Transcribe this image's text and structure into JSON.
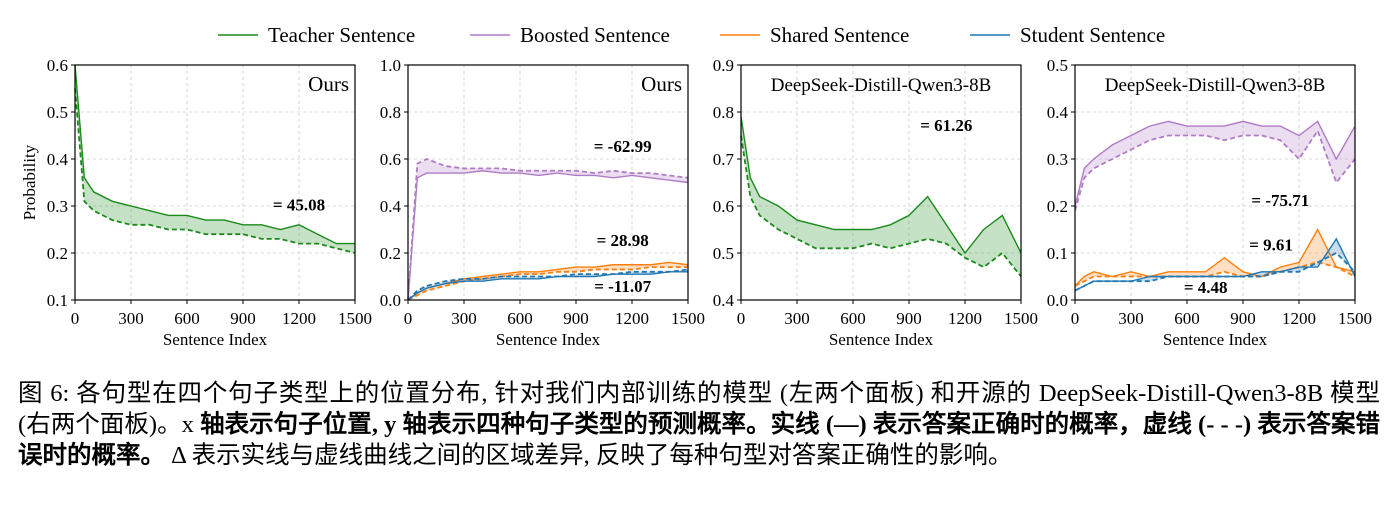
{
  "chart_data": {
    "type": "line",
    "legend_placement": "top-center",
    "legend": [
      {
        "name": "Teacher Sentence",
        "color": "#1a8a1a"
      },
      {
        "name": "Boosted Sentence",
        "color": "#b07cc6"
      },
      {
        "name": "Shared Sentence",
        "color": "#ff7f0e"
      },
      {
        "name": "Student Sentence",
        "color": "#1f77b4"
      }
    ],
    "x_samples": [
      0,
      50,
      100,
      200,
      300,
      400,
      500,
      600,
      700,
      800,
      900,
      1000,
      1100,
      1200,
      1300,
      1400,
      1500
    ],
    "panels": [
      {
        "title": "Ours",
        "xlabel": "Sentence Index",
        "ylabel": "Probability",
        "xlim": [
          0,
          1500
        ],
        "xticks": [
          0,
          300,
          600,
          900,
          1200,
          1500
        ],
        "ylim": [
          0.1,
          0.6
        ],
        "yticks": [
          "0.1",
          "0.2",
          "0.3",
          "0.4",
          "0.5",
          "0.6"
        ],
        "series": [
          {
            "name": "Teacher Sentence",
            "color": "#1a8a1a",
            "correct": [
              0.6,
              0.36,
              0.33,
              0.31,
              0.3,
              0.29,
              0.28,
              0.28,
              0.27,
              0.27,
              0.26,
              0.26,
              0.25,
              0.26,
              0.24,
              0.22,
              0.22
            ],
            "incorrect": [
              0.55,
              0.31,
              0.29,
              0.27,
              0.26,
              0.26,
              0.25,
              0.25,
              0.24,
              0.24,
              0.24,
              0.23,
              0.23,
              0.22,
              0.22,
              0.21,
              0.2
            ]
          }
        ],
        "annotations": [
          {
            "text": "= 45.08",
            "x": 1200,
            "y": 0.29
          }
        ]
      },
      {
        "title": "Ours",
        "xlabel": "Sentence Index",
        "ylabel": "",
        "xlim": [
          0,
          1500
        ],
        "xticks": [
          0,
          300,
          600,
          900,
          1200,
          1500
        ],
        "ylim": [
          0,
          1.0
        ],
        "yticks": [
          "0.0",
          "0.2",
          "0.4",
          "0.6",
          "0.8",
          "1.0"
        ],
        "series": [
          {
            "name": "Boosted Sentence",
            "color": "#b07cc6",
            "correct": [
              0,
              0.52,
              0.54,
              0.54,
              0.54,
              0.55,
              0.54,
              0.54,
              0.53,
              0.54,
              0.53,
              0.53,
              0.52,
              0.53,
              0.52,
              0.51,
              0.5
            ],
            "incorrect": [
              0,
              0.58,
              0.6,
              0.57,
              0.56,
              0.56,
              0.56,
              0.55,
              0.55,
              0.55,
              0.55,
              0.54,
              0.55,
              0.54,
              0.54,
              0.53,
              0.52
            ]
          },
          {
            "name": "Shared Sentence",
            "color": "#ff7f0e",
            "correct": [
              0,
              0.03,
              0.05,
              0.07,
              0.09,
              0.1,
              0.11,
              0.12,
              0.12,
              0.13,
              0.14,
              0.14,
              0.15,
              0.15,
              0.15,
              0.16,
              0.15
            ],
            "incorrect": [
              0,
              0.02,
              0.04,
              0.06,
              0.08,
              0.09,
              0.1,
              0.11,
              0.11,
              0.12,
              0.12,
              0.13,
              0.13,
              0.13,
              0.14,
              0.14,
              0.14
            ]
          },
          {
            "name": "Student Sentence",
            "color": "#1f77b4",
            "correct": [
              0,
              0.03,
              0.05,
              0.07,
              0.08,
              0.08,
              0.09,
              0.09,
              0.09,
              0.1,
              0.1,
              0.1,
              0.11,
              0.11,
              0.11,
              0.12,
              0.12
            ],
            "incorrect": [
              0,
              0.04,
              0.06,
              0.08,
              0.09,
              0.09,
              0.1,
              0.1,
              0.1,
              0.1,
              0.11,
              0.11,
              0.11,
              0.12,
              0.12,
              0.12,
              0.13
            ]
          }
        ],
        "annotations": [
          {
            "text": "= -62.99",
            "x": 1150,
            "y": 0.63
          },
          {
            "text": "= 28.98",
            "x": 1150,
            "y": 0.23
          },
          {
            "text": "= -11.07",
            "x": 1150,
            "y": 0.035
          }
        ]
      },
      {
        "title": "DeepSeek-Distill-Qwen3-8B",
        "xlabel": "Sentence Index",
        "ylabel": "",
        "xlim": [
          0,
          1500
        ],
        "xticks": [
          0,
          300,
          600,
          900,
          1200,
          1500
        ],
        "ylim": [
          0.4,
          0.9
        ],
        "yticks": [
          "0.4",
          "0.5",
          "0.6",
          "0.7",
          "0.8",
          "0.9"
        ],
        "series": [
          {
            "name": "Teacher Sentence",
            "color": "#1a8a1a",
            "correct": [
              0.79,
              0.66,
              0.62,
              0.6,
              0.57,
              0.56,
              0.55,
              0.55,
              0.55,
              0.56,
              0.58,
              0.62,
              0.56,
              0.5,
              0.55,
              0.58,
              0.5
            ],
            "incorrect": [
              0.75,
              0.62,
              0.58,
              0.55,
              0.53,
              0.51,
              0.51,
              0.51,
              0.52,
              0.51,
              0.52,
              0.53,
              0.52,
              0.49,
              0.47,
              0.5,
              0.45
            ]
          }
        ],
        "annotations": [
          {
            "text": "= 61.26",
            "x": 1100,
            "y": 0.76
          }
        ]
      },
      {
        "title": "DeepSeek-Distill-Qwen3-8B",
        "xlabel": "Sentence Index",
        "ylabel": "",
        "xlim": [
          0,
          1500
        ],
        "xticks": [
          0,
          300,
          600,
          900,
          1200,
          1500
        ],
        "ylim": [
          0,
          0.5
        ],
        "yticks": [
          "0.0",
          "0.1",
          "0.2",
          "0.3",
          "0.4",
          "0.5"
        ],
        "series": [
          {
            "name": "Boosted Sentence",
            "color": "#b07cc6",
            "correct": [
              0.2,
              0.28,
              0.3,
              0.33,
              0.35,
              0.37,
              0.38,
              0.37,
              0.37,
              0.37,
              0.38,
              0.37,
              0.37,
              0.35,
              0.38,
              0.3,
              0.37
            ],
            "incorrect": [
              0.19,
              0.26,
              0.28,
              0.3,
              0.32,
              0.34,
              0.35,
              0.35,
              0.35,
              0.34,
              0.35,
              0.35,
              0.34,
              0.3,
              0.36,
              0.25,
              0.3
            ]
          },
          {
            "name": "Shared Sentence",
            "color": "#ff7f0e",
            "correct": [
              0.03,
              0.05,
              0.06,
              0.05,
              0.06,
              0.05,
              0.06,
              0.06,
              0.06,
              0.09,
              0.06,
              0.05,
              0.07,
              0.08,
              0.15,
              0.07,
              0.06
            ],
            "incorrect": [
              0.03,
              0.04,
              0.05,
              0.05,
              0.05,
              0.05,
              0.05,
              0.05,
              0.05,
              0.06,
              0.05,
              0.05,
              0.06,
              0.07,
              0.08,
              0.07,
              0.05
            ]
          },
          {
            "name": "Student Sentence",
            "color": "#1f77b4",
            "correct": [
              0.02,
              0.03,
              0.04,
              0.04,
              0.04,
              0.05,
              0.05,
              0.05,
              0.05,
              0.05,
              0.05,
              0.06,
              0.06,
              0.07,
              0.07,
              0.13,
              0.05
            ],
            "incorrect": [
              0.02,
              0.03,
              0.04,
              0.04,
              0.04,
              0.04,
              0.05,
              0.05,
              0.05,
              0.05,
              0.05,
              0.05,
              0.06,
              0.06,
              0.08,
              0.1,
              0.06
            ]
          }
        ],
        "annotations": [
          {
            "text": "= -75.71",
            "x": 1100,
            "y": 0.2
          },
          {
            "text": "= 9.61",
            "x": 1050,
            "y": 0.105
          },
          {
            "text": "= 4.48",
            "x": 700,
            "y": 0.015
          }
        ]
      }
    ]
  },
  "caption": [
    {
      "text": "图 6: 各句型在四个句子类型上的位置分布, 针对我们内部训练的模型 (左两个面板) 和开源的 DeepSeek-Distill-Qwen3-8B 模型 (右两个面板)。x ",
      "bold": false
    },
    {
      "text": "轴表示句子位置, y 轴表示四种句子类型的预测概率。实线 (—) 表示答案正确时的概率，虚线 (- - -) 表示答案错误时的概率。",
      "bold": true
    },
    {
      "text": " Δ 表示实线与虚线曲线之间的区域差异, 反映了每种句型对答案正确性的影响。",
      "bold": false
    }
  ]
}
